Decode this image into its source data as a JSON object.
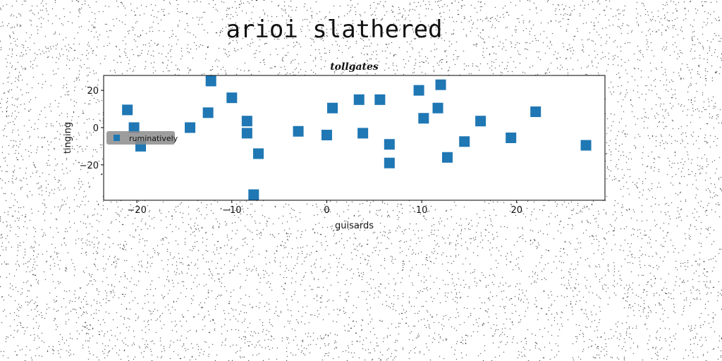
{
  "figure": {
    "suptitle": "arioi slathered"
  },
  "chart_data": {
    "type": "scatter",
    "title": "tollgates",
    "xlabel": "guisards",
    "ylabel": "tinging",
    "xlim": [
      -23.5,
      29.3
    ],
    "ylim": [
      -39,
      28
    ],
    "xticks": [
      -20,
      -10,
      0,
      10,
      20
    ],
    "yticks": [
      -20,
      0,
      20
    ],
    "grid": false,
    "legend": {
      "position": "left",
      "entries": [
        "ruminatively"
      ]
    },
    "colors": {
      "marker": "#1f77b4",
      "legend_bg": "#8c8c8c",
      "noise": "#000000"
    },
    "series": [
      {
        "name": "ruminatively",
        "marker": "square",
        "points": [
          {
            "x": -21.0,
            "y": 9.5
          },
          {
            "x": -20.3,
            "y": 0
          },
          {
            "x": -19.6,
            "y": -10
          },
          {
            "x": -14.4,
            "y": 0
          },
          {
            "x": -12.5,
            "y": 8
          },
          {
            "x": -12.2,
            "y": 25
          },
          {
            "x": -10.0,
            "y": 16
          },
          {
            "x": -8.4,
            "y": 3.5
          },
          {
            "x": -8.4,
            "y": -3
          },
          {
            "x": -7.7,
            "y": -36
          },
          {
            "x": -7.2,
            "y": -14
          },
          {
            "x": -3.0,
            "y": -2
          },
          {
            "x": 0.0,
            "y": -4
          },
          {
            "x": 0.6,
            "y": 10.5
          },
          {
            "x": 3.4,
            "y": 15
          },
          {
            "x": 3.8,
            "y": -3
          },
          {
            "x": 5.6,
            "y": 15
          },
          {
            "x": 6.6,
            "y": -9
          },
          {
            "x": 6.6,
            "y": -19
          },
          {
            "x": 9.7,
            "y": 20
          },
          {
            "x": 10.2,
            "y": 5
          },
          {
            "x": 11.7,
            "y": 10.5
          },
          {
            "x": 12.0,
            "y": 23
          },
          {
            "x": 12.7,
            "y": -16
          },
          {
            "x": 14.5,
            "y": -7.5
          },
          {
            "x": 16.2,
            "y": 3.5
          },
          {
            "x": 19.4,
            "y": -5.5
          },
          {
            "x": 22.0,
            "y": 8.5
          },
          {
            "x": 27.3,
            "y": -9.5
          }
        ]
      }
    ]
  }
}
